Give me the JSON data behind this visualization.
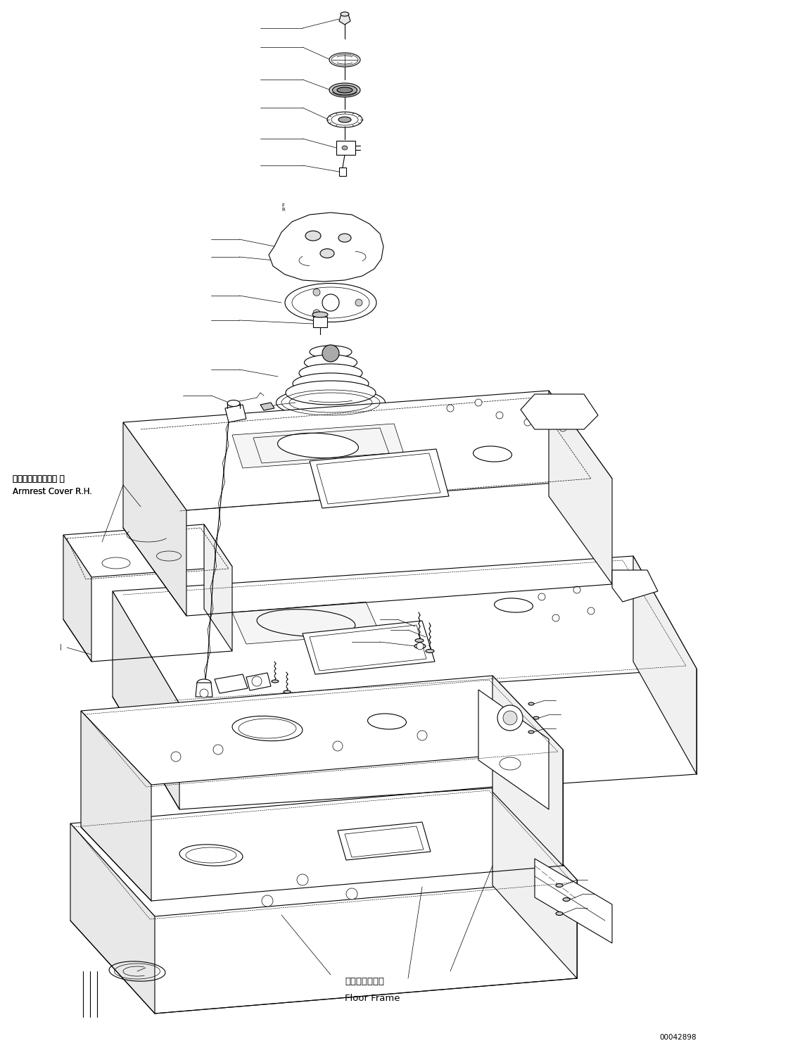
{
  "figure_width": 11.47,
  "figure_height": 14.89,
  "dpi": 100,
  "bg_color": "#ffffff",
  "drawing_color": "#000000",
  "lw_thin": 0.5,
  "lw_med": 0.8,
  "lw_thick": 1.2,
  "label_armrest_jp": "アームレストカバー 右",
  "label_armrest_en": "Armrest Cover R.H.",
  "label_floor_jp": "フロアフレーム",
  "label_floor_en": "Floor Frame",
  "label_code": "00042898",
  "font_size_label": 8.5,
  "font_size_code": 7.5
}
